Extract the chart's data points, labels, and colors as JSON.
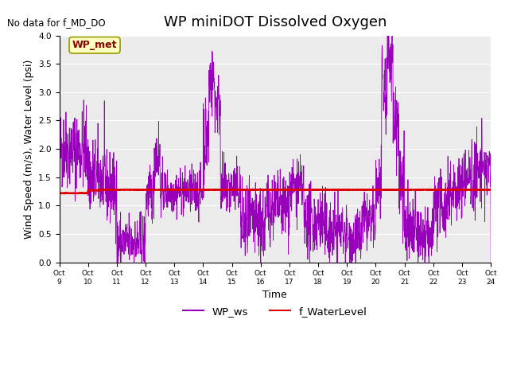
{
  "title": "WP miniDOT Dissolved Oxygen",
  "no_data_text": "No data for f_MD_DO",
  "box_annotation": "WP_met",
  "ylabel": "Wind Speed (m/s), Water Level (psi)",
  "xlabel": "Time",
  "ylim": [
    0.0,
    4.0
  ],
  "yticks": [
    0.0,
    0.5,
    1.0,
    1.5,
    2.0,
    2.5,
    3.0,
    3.5,
    4.0
  ],
  "xtick_labels": [
    "Oct 9",
    "Oct 10",
    "Oct 11",
    "Oct 12",
    "Oct 13",
    "Oct 14",
    "Oct 15",
    "Oct 16",
    "Oct 17",
    "Oct 18",
    "Oct 19",
    "Oct 20",
    "Oct 21",
    "Oct 22",
    "Oct 23",
    "Oct 24"
  ],
  "ws_color": "#9900BB",
  "wl_color": "#DD0000",
  "bg_color": "#EBEBEB",
  "legend_ws": "WP_ws",
  "legend_wl": "f_WaterLevel",
  "title_fontsize": 13,
  "label_fontsize": 9,
  "tick_fontsize": 7.5
}
